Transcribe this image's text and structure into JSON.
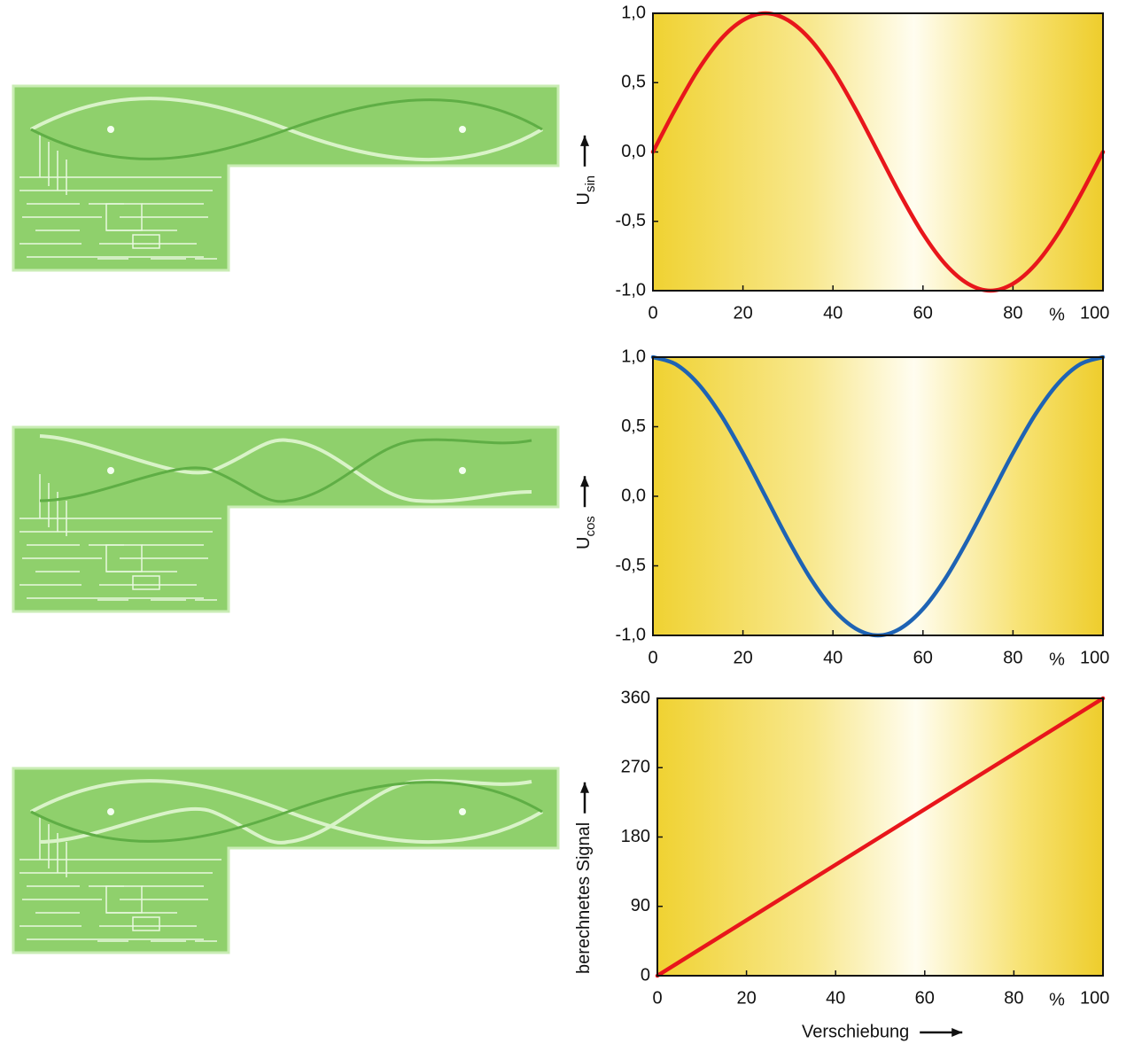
{
  "chart_data": [
    {
      "type": "line",
      "y_label": "U",
      "y_label_sub": "sin",
      "x_unit": "%",
      "color": "#e8161b",
      "x": [
        0,
        5,
        10,
        15,
        20,
        25,
        30,
        35,
        40,
        45,
        50,
        55,
        60,
        65,
        70,
        75,
        80,
        85,
        90,
        95,
        100
      ],
      "values": [
        0,
        0.31,
        0.59,
        0.81,
        0.95,
        1,
        0.95,
        0.81,
        0.59,
        0.31,
        0,
        -0.31,
        -0.59,
        -0.81,
        -0.95,
        -1,
        -0.95,
        -0.81,
        -0.59,
        -0.31,
        0
      ],
      "xlim": [
        0,
        100
      ],
      "xticks": [
        0,
        20,
        40,
        60,
        80,
        100
      ],
      "ylim": [
        -1,
        1
      ],
      "yticks": [
        {
          "value": -1,
          "label": "-1,0"
        },
        {
          "value": -0.5,
          "label": "-0,5"
        },
        {
          "value": 0,
          "label": "0,0"
        },
        {
          "value": 0.5,
          "label": "0,5"
        },
        {
          "value": 1,
          "label": "1,0"
        }
      ]
    },
    {
      "type": "line",
      "y_label": "U",
      "y_label_sub": "cos",
      "x_unit": "%",
      "color": "#1e63b4",
      "x": [
        0,
        5,
        10,
        15,
        20,
        25,
        30,
        35,
        40,
        45,
        50,
        55,
        60,
        65,
        70,
        75,
        80,
        85,
        90,
        95,
        100
      ],
      "values": [
        1,
        0.95,
        0.81,
        0.59,
        0.31,
        0,
        -0.31,
        -0.59,
        -0.81,
        -0.95,
        -1,
        -0.95,
        -0.81,
        -0.59,
        -0.31,
        0,
        0.31,
        0.59,
        0.81,
        0.95,
        1
      ],
      "xlim": [
        0,
        100
      ],
      "xticks": [
        0,
        20,
        40,
        60,
        80,
        100
      ],
      "ylim": [
        -1,
        1
      ],
      "yticks": [
        {
          "value": -1,
          "label": "-1,0"
        },
        {
          "value": -0.5,
          "label": "-0,5"
        },
        {
          "value": 0,
          "label": "0,0"
        },
        {
          "value": 0.5,
          "label": "0,5"
        },
        {
          "value": 1,
          "label": "1,0"
        }
      ]
    },
    {
      "type": "line",
      "y_label": "berechnetes Signal",
      "x_label": "Verschiebung",
      "x_unit": "%",
      "color": "#e8161b",
      "x": [
        0,
        100
      ],
      "values": [
        0,
        360
      ],
      "xlim": [
        0,
        100
      ],
      "xticks": [
        0,
        20,
        40,
        60,
        80,
        100
      ],
      "ylim": [
        0,
        360
      ],
      "yticks": [
        0,
        90,
        180,
        270,
        360
      ]
    }
  ]
}
